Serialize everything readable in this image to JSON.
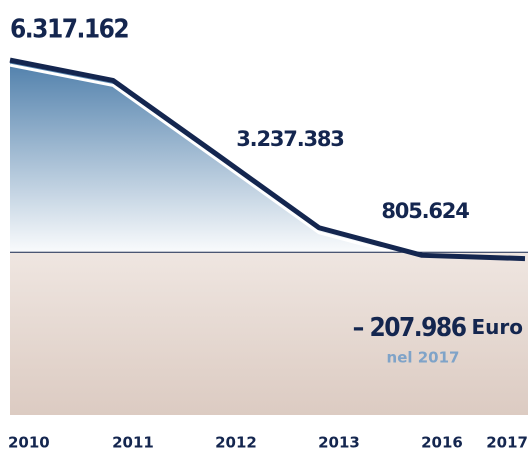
{
  "chart_data": {
    "type": "area",
    "categories": [
      "2010",
      "2011",
      "2012",
      "2013",
      "2016",
      "2017"
    ],
    "values": [
      6317162,
      5650000,
      3237383,
      805624,
      -100000,
      -207986
    ],
    "value_labels": [
      "6.317.162",
      null,
      "3.237.383",
      "805.624",
      null,
      "– 207.986"
    ],
    "unit": "Euro",
    "note": "nel 2017",
    "color": "#14264f",
    "ylim": [
      -5350000,
      6650000
    ]
  }
}
